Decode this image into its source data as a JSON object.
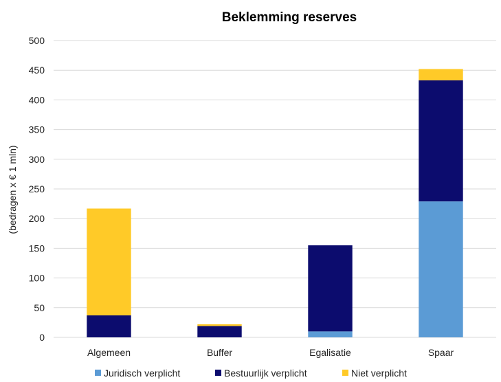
{
  "chart_data": {
    "type": "bar",
    "stacked": true,
    "title": "Beklemming reserves",
    "xlabel": "",
    "ylabel": "(bedragen x € 1 mln)",
    "ylim": [
      0,
      500
    ],
    "yticks": [
      0,
      50,
      100,
      150,
      200,
      250,
      300,
      350,
      400,
      450,
      500
    ],
    "grid": true,
    "legend_position": "bottom",
    "categories": [
      "Algemeen",
      "Buffer",
      "Egalisatie",
      "Spaar"
    ],
    "series": [
      {
        "name": "Juridisch verplicht",
        "color": "#5b9bd5",
        "values": [
          0,
          0,
          10,
          229
        ]
      },
      {
        "name": "Bestuurlijk verplicht",
        "color": "#0c0c6e",
        "values": [
          37,
          19,
          145,
          204
        ]
      },
      {
        "name": "Niet verplicht",
        "color": "#ffca28",
        "values": [
          180,
          3,
          0,
          19
        ]
      }
    ]
  }
}
